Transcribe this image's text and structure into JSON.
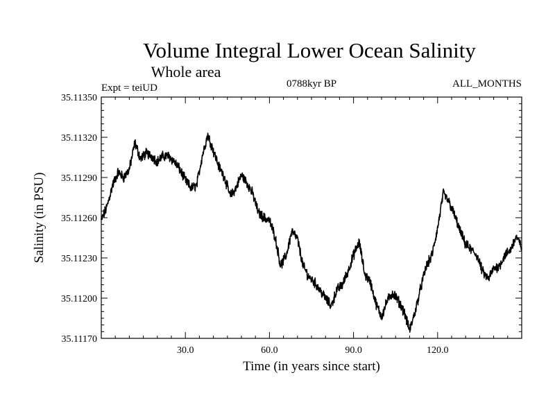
{
  "chart_data": {
    "type": "line",
    "title": "Volume Integral Lower Ocean Salinity",
    "subtitle": "Whole area",
    "experiment": "Expt = teiUD",
    "period": "0788kyr BP",
    "months": "ALL_MONTHS",
    "xlabel": "Time (in years since start)",
    "ylabel": "Salinity (in PSU)",
    "xlim": [
      0,
      150
    ],
    "ylim": [
      35.1117,
      35.1135
    ],
    "xticks": [
      30,
      60,
      90,
      120
    ],
    "xtick_labels": [
      "30.0",
      "60.0",
      "90.0",
      "120.0"
    ],
    "yticks": [
      35.1117,
      35.112,
      35.1123,
      35.1126,
      35.1129,
      35.1132,
      35.1135
    ],
    "ytick_labels": [
      "35.11170",
      "35.11200",
      "35.11230",
      "35.11260",
      "35.11290",
      "35.11320",
      "35.11350"
    ],
    "grid": false,
    "series": [
      {
        "name": "Salinity",
        "color": "#000000",
        "x": [
          0,
          2,
          4,
          6,
          8,
          10,
          12,
          14,
          16,
          18,
          20,
          22,
          24,
          26,
          28,
          30,
          32,
          34,
          36,
          38,
          40,
          42,
          44,
          46,
          48,
          50,
          52,
          54,
          56,
          58,
          60,
          62,
          64,
          66,
          68,
          70,
          72,
          74,
          76,
          78,
          80,
          82,
          84,
          86,
          88,
          90,
          92,
          94,
          96,
          98,
          100,
          102,
          104,
          106,
          108,
          110,
          112,
          114,
          116,
          118,
          120,
          122,
          124,
          126,
          128,
          130,
          132,
          134,
          136,
          138,
          140,
          142,
          144,
          146,
          148,
          150
        ],
        "values": [
          35.11258,
          35.11268,
          35.11284,
          35.11294,
          35.1129,
          35.11296,
          35.11316,
          35.11304,
          35.11308,
          35.11306,
          35.11302,
          35.11306,
          35.11306,
          35.11302,
          35.11296,
          35.11288,
          35.11282,
          35.11284,
          35.11306,
          35.11322,
          35.1131,
          35.11298,
          35.1129,
          35.11276,
          35.11282,
          35.11292,
          35.11286,
          35.11278,
          35.11264,
          35.1126,
          35.11258,
          35.11246,
          35.11224,
          35.11232,
          35.1125,
          35.11244,
          35.11224,
          35.11216,
          35.11212,
          35.11206,
          35.112,
          35.11194,
          35.11206,
          35.1121,
          35.1122,
          35.11232,
          35.11242,
          35.11218,
          35.11212,
          35.11196,
          35.11186,
          35.11198,
          35.11204,
          35.11198,
          35.1119,
          35.11176,
          35.1119,
          35.11208,
          35.11224,
          35.11232,
          35.11252,
          35.11278,
          35.11272,
          35.11262,
          35.1125,
          35.1124,
          35.11236,
          35.11232,
          35.1122,
          35.11214,
          35.11222,
          35.11224,
          35.11232,
          35.11236,
          35.11246,
          35.11238
        ]
      }
    ]
  }
}
